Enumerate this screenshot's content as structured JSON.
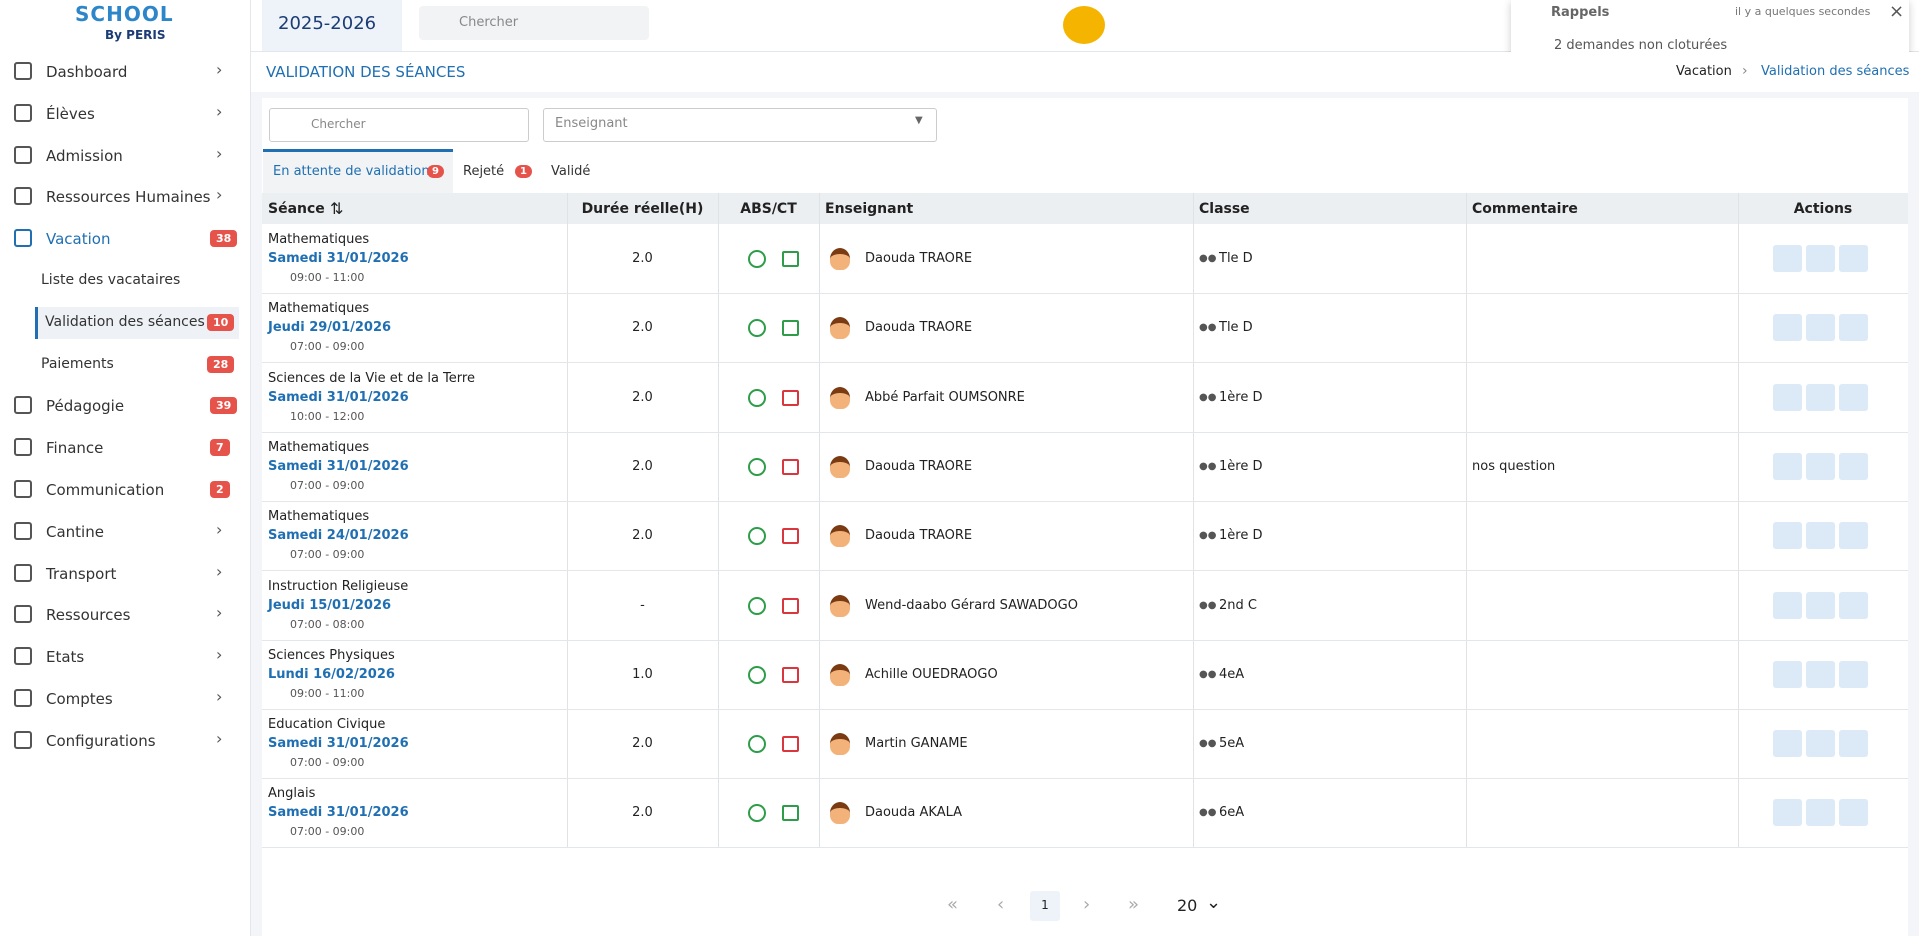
{
  "logo": {
    "title": "SCHOOL",
    "subtitle": "By PERIS"
  },
  "header": {
    "year": "2025-2026",
    "search_placeholder": "Chercher"
  },
  "notification": {
    "title": "Rappels",
    "time": "il y a quelques secondes",
    "message": "2 demandes non cloturées"
  },
  "sidebar": {
    "items": [
      {
        "label": "Dashboard"
      },
      {
        "label": "Élèves"
      },
      {
        "label": "Admission"
      },
      {
        "label": "Ressources Humaines"
      },
      {
        "label": "Vacation",
        "badge": 38,
        "active": true
      },
      {
        "label": "Liste des vacataires",
        "sub": true
      },
      {
        "label": "Validation des séances",
        "badge": 10,
        "sub": true,
        "active": true
      },
      {
        "label": "Paiements",
        "badge": 28,
        "sub": true
      },
      {
        "label": "Pédagogie",
        "badge": 39
      },
      {
        "label": "Finance",
        "badge": 7
      },
      {
        "label": "Communication",
        "badge": 2
      },
      {
        "label": "Cantine"
      },
      {
        "label": "Transport"
      },
      {
        "label": "Ressources"
      },
      {
        "label": "Etats"
      },
      {
        "label": "Comptes"
      },
      {
        "label": "Configurations"
      }
    ]
  },
  "page": {
    "title": "VALIDATION DES SÉANCES",
    "breadcrumb": [
      "Vacation",
      "Validation des séances"
    ]
  },
  "filters": {
    "search_placeholder": "Chercher",
    "teacher_placeholder": "Enseignant"
  },
  "tabs": [
    {
      "label": "En attente de validation",
      "badge": 9,
      "active": true
    },
    {
      "label": "Rejeté",
      "badge": 1
    },
    {
      "label": "Validé"
    }
  ],
  "table": {
    "columns": [
      "Séance",
      "Durée réelle(H)",
      "ABS/CT",
      "Enseignant",
      "Classe",
      "Commentaire",
      "Actions"
    ],
    "rows": [
      {
        "subject": "Mathematiques",
        "date": "Samedi 31/01/2026",
        "time": "09:00 - 11:00",
        "duration": "2.0",
        "teacher": "Daouda TRAORE",
        "class": "Tle D",
        "comment": "",
        "ct_color": "#2e9d4a"
      },
      {
        "subject": "Mathematiques",
        "date": "Jeudi 29/01/2026",
        "time": "07:00 - 09:00",
        "duration": "2.0",
        "teacher": "Daouda TRAORE",
        "class": "Tle D",
        "comment": "",
        "ct_color": "#2e9d4a"
      },
      {
        "subject": "Sciences de la Vie et de la Terre",
        "date": "Samedi 31/01/2026",
        "time": "10:00 - 12:00",
        "duration": "2.0",
        "teacher": "Abbé Parfait OUMSONRE",
        "class": "1ère D",
        "comment": "",
        "ct_color": "#d9363e"
      },
      {
        "subject": "Mathematiques",
        "date": "Samedi 31/01/2026",
        "time": "07:00 - 09:00",
        "duration": "2.0",
        "teacher": "Daouda TRAORE",
        "class": "1ère D",
        "comment": "nos question",
        "ct_color": "#d9363e"
      },
      {
        "subject": "Mathematiques",
        "date": "Samedi 24/01/2026",
        "time": "07:00 - 09:00",
        "duration": "2.0",
        "teacher": "Daouda TRAORE",
        "class": "1ère D",
        "comment": "",
        "ct_color": "#d9363e"
      },
      {
        "subject": "Instruction Religieuse",
        "date": "Jeudi 15/01/2026",
        "time": "07:00 - 08:00",
        "duration": "-",
        "teacher": "Wend-daabo Gérard SAWADOGO",
        "class": "2nd C",
        "comment": "",
        "ct_color": "#d9363e"
      },
      {
        "subject": "Sciences Physiques",
        "date": "Lundi 16/02/2026",
        "time": "09:00 - 11:00",
        "duration": "1.0",
        "teacher": "Achille OUEDRAOGO",
        "class": "4eA",
        "comment": "",
        "ct_color": "#d9363e"
      },
      {
        "subject": "Education Civique",
        "date": "Samedi 31/01/2026",
        "time": "07:00 - 09:00",
        "duration": "2.0",
        "teacher": "Martin GANAME",
        "class": "5eA",
        "comment": "",
        "ct_color": "#d9363e"
      },
      {
        "subject": "Anglais",
        "date": "Samedi 31/01/2026",
        "time": "07:00 - 09:00",
        "duration": "2.0",
        "teacher": "Daouda AKALA",
        "class": "6eA",
        "comment": "",
        "ct_color": "#2e9d4a"
      }
    ]
  },
  "pagination": {
    "page": 1,
    "page_size": 20
  }
}
